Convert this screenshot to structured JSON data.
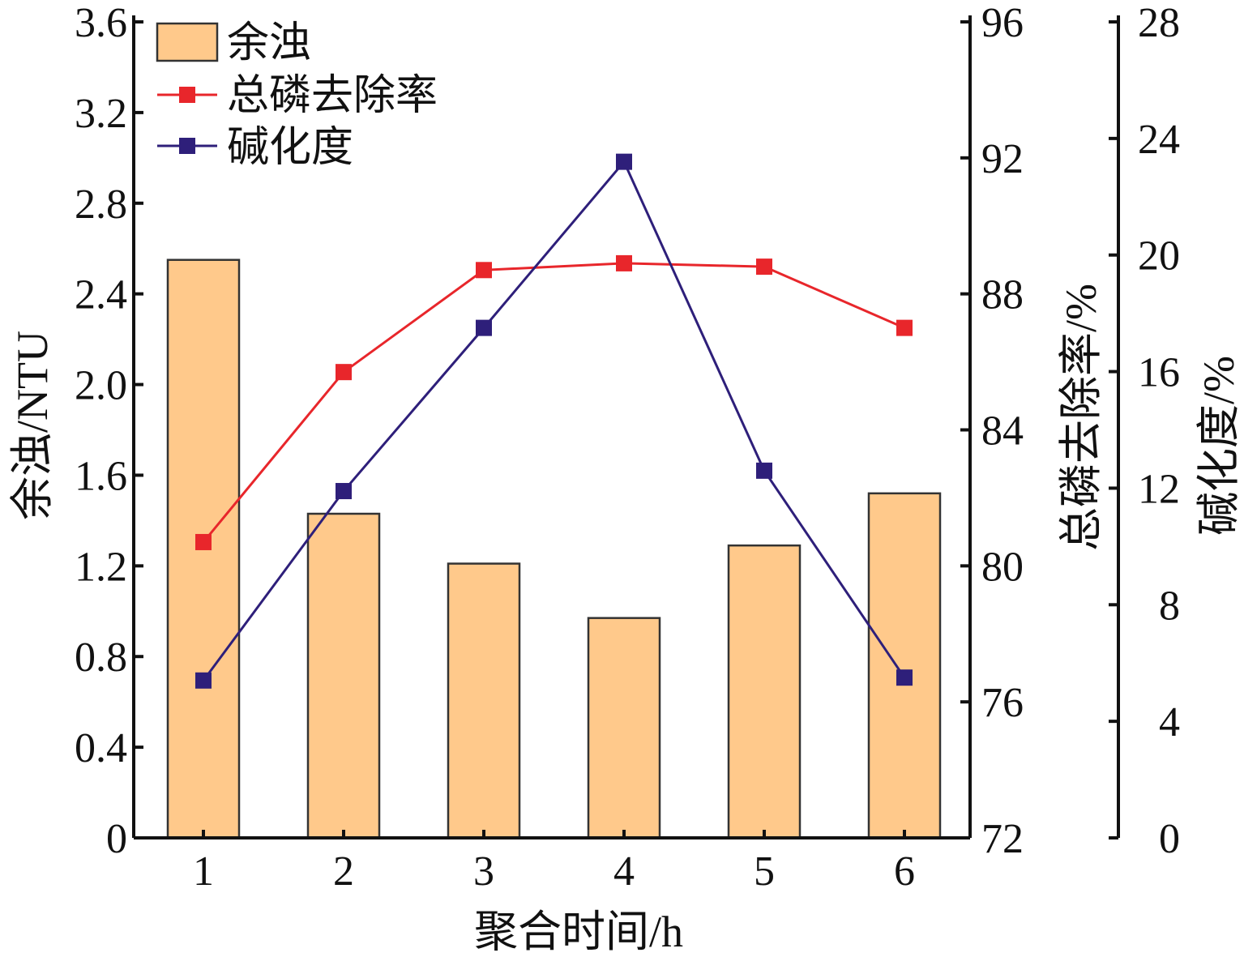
{
  "chart_data": {
    "type": "bar+line",
    "xlabel": "聚合时间/h",
    "categories": [
      "1",
      "2",
      "3",
      "4",
      "5",
      "6"
    ],
    "axes": {
      "left": {
        "label": "余浊/NTU",
        "ylim": [
          0,
          3.6
        ],
        "ticks": [
          "0",
          "0.4",
          "0.8",
          "1.2",
          "1.6",
          "2.0",
          "2.4",
          "2.8",
          "3.2",
          "3.6"
        ]
      },
      "right1": {
        "label": "总磷去除率/%",
        "ylim": [
          72,
          96
        ],
        "ticks": [
          "72",
          "76",
          "80",
          "84",
          "88",
          "92",
          "96"
        ]
      },
      "right2": {
        "label": "碱化度/%",
        "ylim": [
          0,
          28
        ],
        "ticks": [
          "0",
          "4",
          "8",
          "12",
          "16",
          "20",
          "24",
          "28"
        ]
      }
    },
    "series": [
      {
        "name": "余浊",
        "type": "bar",
        "axis": "left",
        "color": "#FFC98B",
        "values": [
          2.55,
          1.43,
          1.21,
          0.97,
          1.29,
          1.52
        ]
      },
      {
        "name": "总磷去除率",
        "type": "line",
        "axis": "right1",
        "color": "#E8262B",
        "values": [
          80.7,
          85.7,
          88.7,
          88.9,
          88.8,
          87.0
        ]
      },
      {
        "name": "碱化度",
        "type": "line",
        "axis": "right2",
        "color": "#2E1F7A",
        "values": [
          5.4,
          11.9,
          17.5,
          23.2,
          12.6,
          5.5
        ]
      }
    ],
    "legend": "top-left",
    "grid": false
  }
}
